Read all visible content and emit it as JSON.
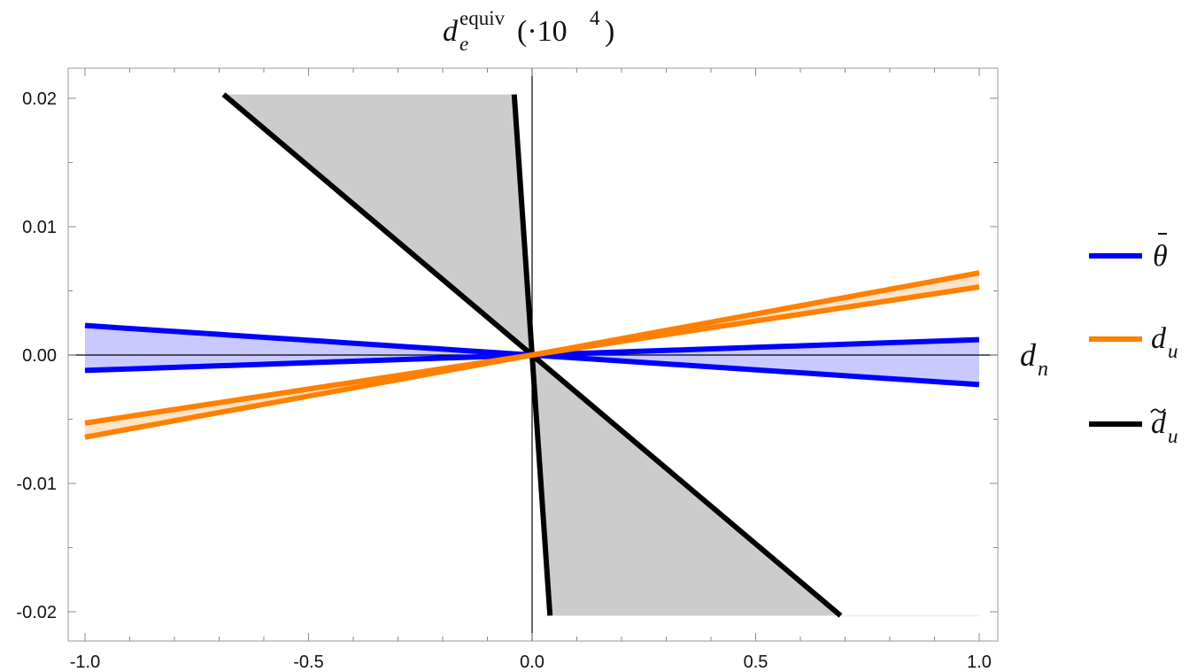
{
  "chart_data": {
    "type": "line",
    "title": "d_e^equiv(·10^4)",
    "title_parts": {
      "d": "d",
      "sub": "e",
      "sup": "equiv",
      "rest": "(·10",
      "exp": "4",
      "close": ")"
    },
    "xlabel": "d_n",
    "xlabel_parts": {
      "d": "d",
      "sub": "n"
    },
    "xlim": [
      -1.0,
      1.0
    ],
    "ylim": [
      -0.022,
      0.0225
    ],
    "xticks": [
      -1.0,
      -0.5,
      0.0,
      0.5,
      1.0
    ],
    "xtick_labels": [
      "-1.0",
      "-0.5",
      "0.0",
      "0.5",
      "1.0"
    ],
    "yticks": [
      -0.02,
      -0.01,
      0.0,
      0.01,
      0.02
    ],
    "ytick_labels": [
      "-0.02",
      "-0.01",
      "0.00",
      "0.01",
      "0.02"
    ],
    "grid": false,
    "legend_position": "right",
    "series": [
      {
        "name": "θ̄",
        "legend_parts": {
          "base": "θ",
          "accent": "bar"
        },
        "color": "#0000ff",
        "band_color": "#c9c9ff",
        "lines": [
          {
            "x": [
              -1.0,
              1.0
            ],
            "y": [
              0.0023,
              -0.0023
            ]
          },
          {
            "x": [
              -1.0,
              1.0
            ],
            "y": [
              -0.0012,
              0.0012
            ]
          }
        ]
      },
      {
        "name": "d_u",
        "legend_parts": {
          "d": "d",
          "sub": "u"
        },
        "color": "#ff8000",
        "band_color": "#fde3c8",
        "lines": [
          {
            "x": [
              -1.0,
              1.0
            ],
            "y": [
              -0.0064,
              0.0064
            ]
          },
          {
            "x": [
              -1.0,
              1.0
            ],
            "y": [
              -0.0053,
              0.0053
            ]
          }
        ]
      },
      {
        "name": "d̃_u",
        "legend_parts": {
          "d": "d",
          "sub": "u",
          "accent": "tilde"
        },
        "color": "#000000",
        "band_color": "#cccccc",
        "lines": [
          {
            "x": [
              -0.69,
              0.69
            ],
            "y": [
              0.0203,
              -0.0203
            ]
          },
          {
            "x": [
              -0.04,
              0.04
            ],
            "y": [
              0.0203,
              -0.0203
            ]
          }
        ]
      }
    ]
  }
}
